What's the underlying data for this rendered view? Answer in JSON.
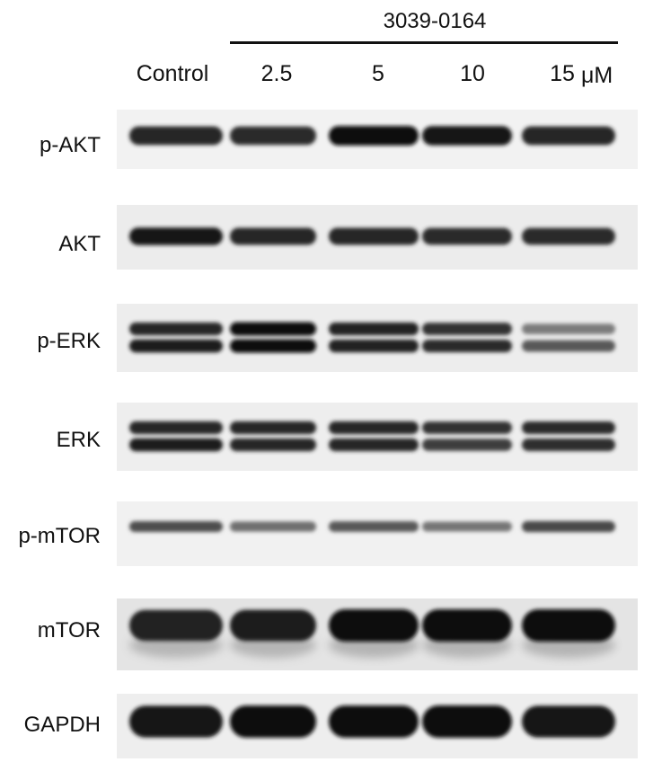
{
  "header": {
    "compound": "3039-0164",
    "unit": "μM"
  },
  "lanes": [
    {
      "label": "Control"
    },
    {
      "label": "2.5"
    },
    {
      "label": "5"
    },
    {
      "label": "10"
    },
    {
      "label": "15"
    }
  ],
  "blots": [
    {
      "label": "p-AKT",
      "bands": [
        [
          0.88
        ],
        [
          0.86
        ],
        [
          0.98
        ],
        [
          0.94
        ],
        [
          0.88
        ]
      ]
    },
    {
      "label": "AKT",
      "bands": [
        [
          0.95
        ],
        [
          0.88
        ],
        [
          0.88
        ],
        [
          0.86
        ],
        [
          0.86
        ]
      ]
    },
    {
      "label": "p-ERK",
      "bands": [
        [
          0.88,
          0.92
        ],
        [
          1.0,
          1.0
        ],
        [
          0.9,
          0.9
        ],
        [
          0.82,
          0.85
        ],
        [
          0.5,
          0.65
        ]
      ]
    },
    {
      "label": "ERK",
      "bands": [
        [
          0.88,
          0.92
        ],
        [
          0.88,
          0.88
        ],
        [
          0.88,
          0.88
        ],
        [
          0.82,
          0.78
        ],
        [
          0.86,
          0.84
        ]
      ]
    },
    {
      "label": "p-mTOR",
      "bands": [
        [
          0.7
        ],
        [
          0.55
        ],
        [
          0.65
        ],
        [
          0.52
        ],
        [
          0.72
        ]
      ]
    },
    {
      "label": "mTOR",
      "bands": [
        [
          0.9
        ],
        [
          0.92
        ],
        [
          1.0
        ],
        [
          1.0
        ],
        [
          1.0
        ]
      ]
    },
    {
      "label": "GAPDH",
      "bands": [
        [
          0.95
        ],
        [
          0.98
        ],
        [
          0.98
        ],
        [
          1.0
        ],
        [
          0.95
        ]
      ]
    }
  ]
}
